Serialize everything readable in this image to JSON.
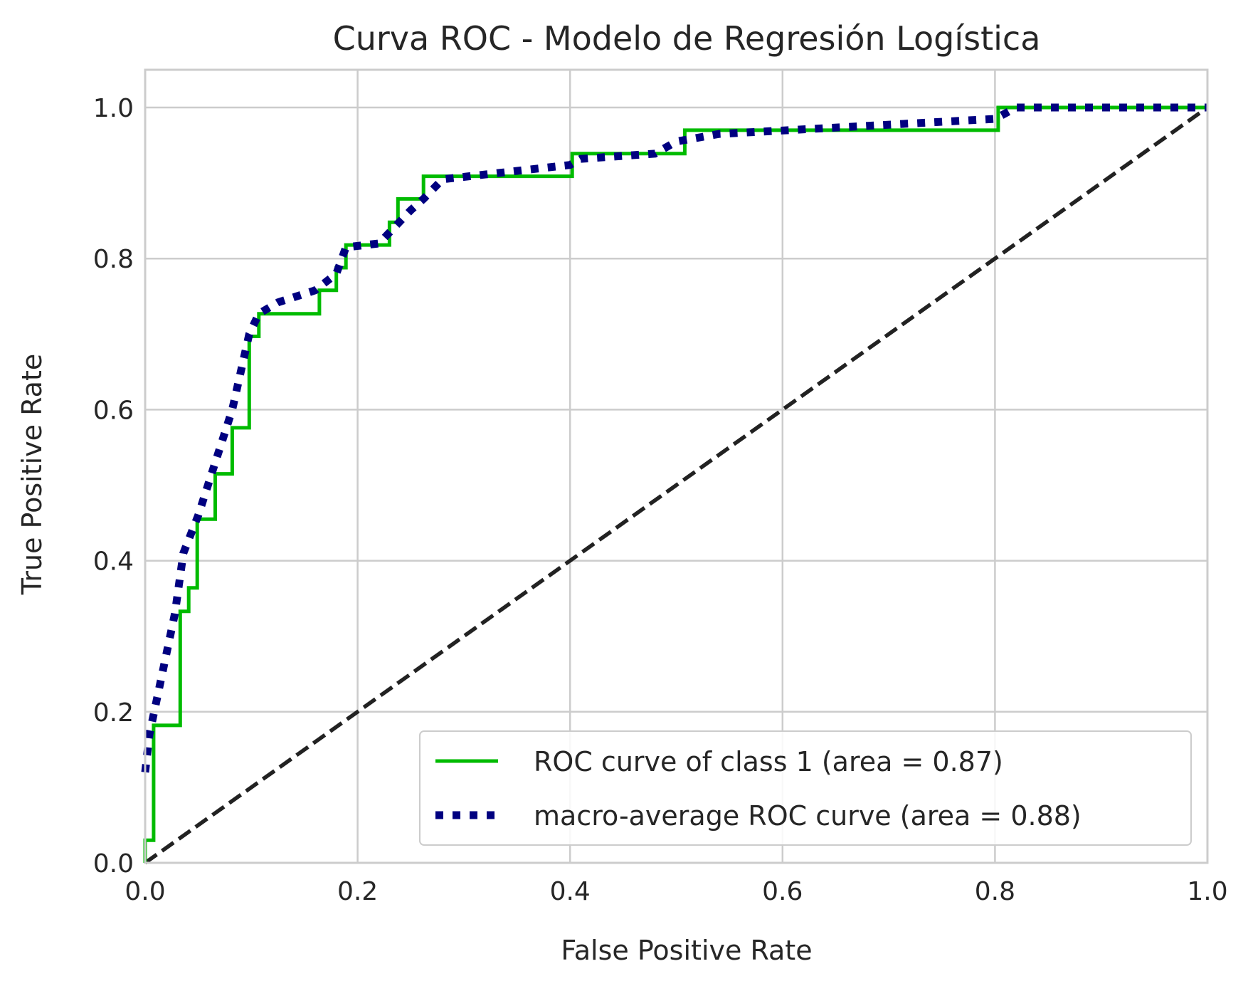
{
  "chart_data": {
    "type": "line",
    "title": "Curva ROC - Modelo de Regresión Logística",
    "xlabel": "False Positive Rate",
    "ylabel": "True Positive Rate",
    "xlim": [
      0.0,
      1.0
    ],
    "ylim": [
      0.0,
      1.05
    ],
    "xticks": [
      "0.0",
      "0.2",
      "0.4",
      "0.6",
      "0.8",
      "1.0"
    ],
    "yticks": [
      "0.0",
      "0.2",
      "0.4",
      "0.6",
      "0.8",
      "1.0"
    ],
    "grid": true,
    "legend_position": "lower-right",
    "series": [
      {
        "name": "ROC curve of class 1 (area = 0.87)",
        "color": "#00bb00",
        "style": "solid",
        "x": [
          0.0,
          0.0,
          0.008,
          0.008,
          0.033,
          0.033,
          0.041,
          0.041,
          0.049,
          0.049,
          0.066,
          0.066,
          0.082,
          0.082,
          0.098,
          0.098,
          0.107,
          0.107,
          0.164,
          0.164,
          0.18,
          0.18,
          0.189,
          0.189,
          0.23,
          0.23,
          0.238,
          0.238,
          0.262,
          0.262,
          0.402,
          0.402,
          0.508,
          0.508,
          0.803,
          0.803,
          1.0
        ],
        "y": [
          0.0,
          0.03,
          0.03,
          0.182,
          0.182,
          0.333,
          0.333,
          0.364,
          0.364,
          0.455,
          0.455,
          0.515,
          0.515,
          0.576,
          0.576,
          0.697,
          0.697,
          0.727,
          0.727,
          0.758,
          0.758,
          0.788,
          0.788,
          0.818,
          0.818,
          0.848,
          0.848,
          0.879,
          0.879,
          0.909,
          0.909,
          0.939,
          0.939,
          0.97,
          0.97,
          1.0,
          1.0
        ]
      },
      {
        "name": "macro-average ROC curve (area = 0.88)",
        "color": "#000080",
        "style": "dotted",
        "x": [
          0.0,
          0.004,
          0.016,
          0.028,
          0.036,
          0.05,
          0.066,
          0.082,
          0.098,
          0.107,
          0.125,
          0.16,
          0.18,
          0.189,
          0.22,
          0.25,
          0.262,
          0.28,
          0.4,
          0.41,
          0.48,
          0.5,
          0.54,
          0.8,
          0.82,
          1.0
        ],
        "y": [
          0.12,
          0.17,
          0.25,
          0.33,
          0.41,
          0.46,
          0.53,
          0.6,
          0.7,
          0.727,
          0.742,
          0.758,
          0.78,
          0.815,
          0.82,
          0.864,
          0.879,
          0.905,
          0.924,
          0.932,
          0.939,
          0.955,
          0.965,
          0.985,
          1.0,
          1.0
        ]
      },
      {
        "name": "",
        "color": "#222222",
        "style": "dashed",
        "x": [
          0.0,
          1.0
        ],
        "y": [
          0.0,
          1.0
        ]
      }
    ]
  }
}
